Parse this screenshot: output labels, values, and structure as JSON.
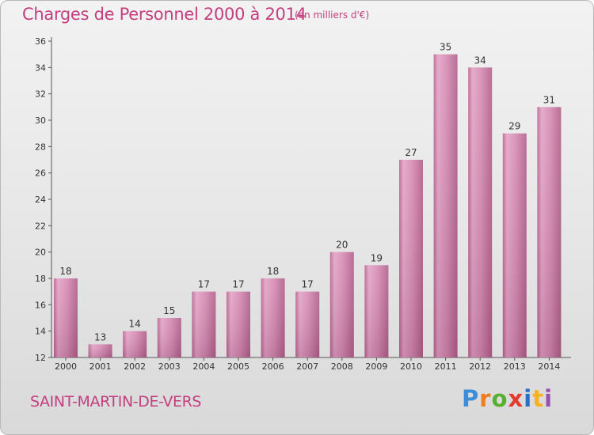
{
  "chart_data": {
    "type": "bar",
    "title": "Charges de Personnel 2000 à 2014",
    "subtitle": "(en milliers d'€)",
    "categories": [
      "2000",
      "2001",
      "2002",
      "2003",
      "2004",
      "2005",
      "2006",
      "2007",
      "2008",
      "2009",
      "2010",
      "2011",
      "2012",
      "2013",
      "2014"
    ],
    "values": [
      18,
      13,
      14,
      15,
      17,
      17,
      18,
      17,
      20,
      19,
      27,
      35,
      34,
      29,
      31
    ],
    "ylim": [
      12,
      36
    ],
    "yticks": [
      12,
      14,
      16,
      18,
      20,
      22,
      24,
      26,
      28,
      30,
      32,
      34,
      36
    ],
    "xlabel": "",
    "ylabel": "",
    "grid": false,
    "bar_color": "#cc6699"
  },
  "footer": {
    "commune": "SAINT-MARTIN-DE-VERS",
    "logo_letters": [
      "P",
      "r",
      "o",
      "x",
      "i",
      "t",
      "i"
    ]
  }
}
